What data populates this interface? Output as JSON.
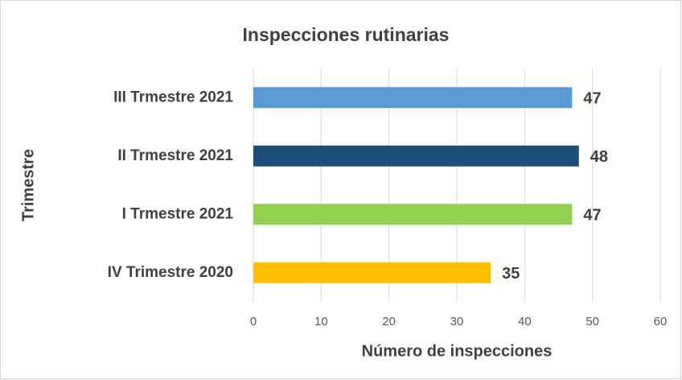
{
  "chart_data": {
    "type": "hbar",
    "title": "Inspecciones rutinarias",
    "x_label": "Número de inspecciones",
    "y_label": "Trimestre",
    "categories": [
      "III Trmestre 2021",
      "II Trmestre 2021",
      "I Trmestre 2021",
      "IV Trimestre 2020"
    ],
    "values": [
      47,
      48,
      47,
      35
    ],
    "colors": [
      "#5b9bd5",
      "#1f4e79",
      "#92d050",
      "#ffc000"
    ],
    "xlim": [
      0,
      60
    ],
    "xticks": [
      0,
      10,
      20,
      30,
      40,
      50,
      60
    ],
    "grid": true
  }
}
